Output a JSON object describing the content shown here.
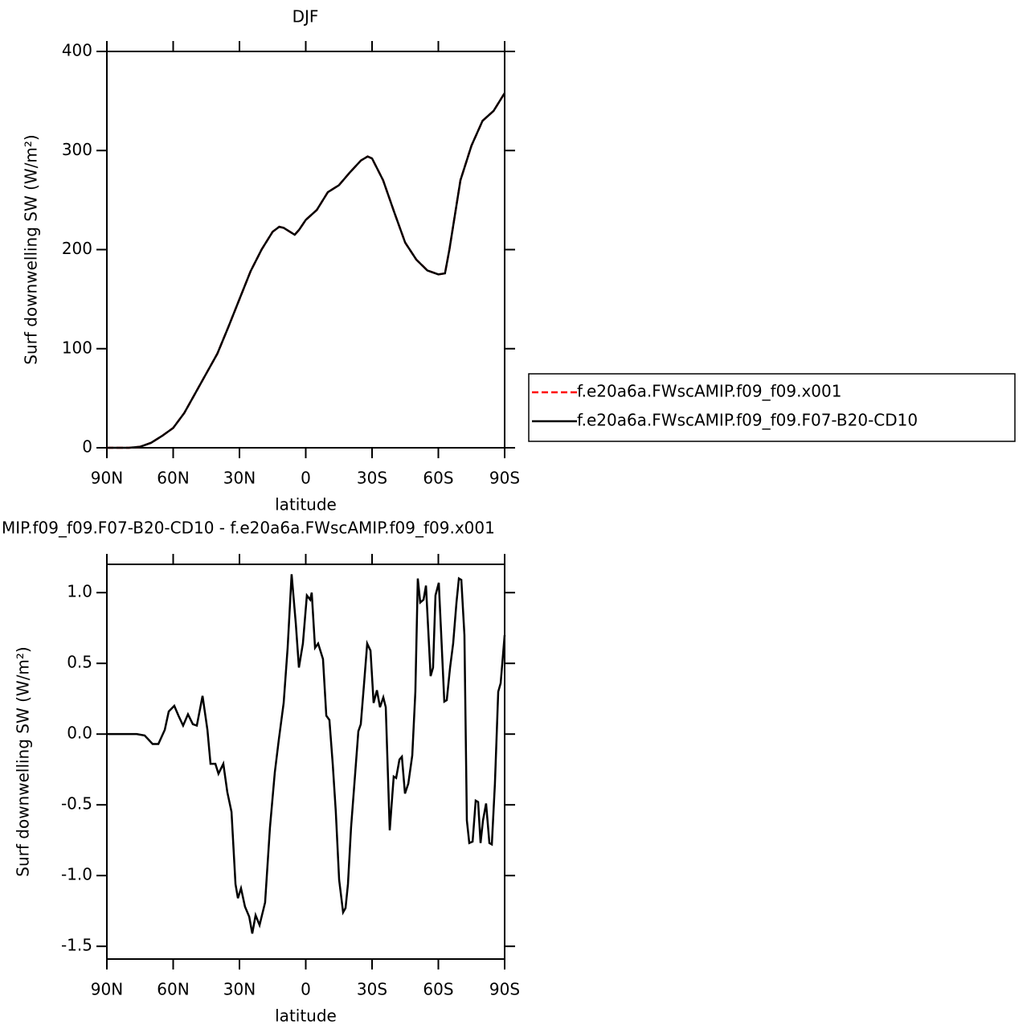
{
  "chart_data": [
    {
      "type": "line",
      "title": "DJF",
      "xlabel": "latitude",
      "ylabel": "Surf downwelling SW (W/m²)",
      "x": [
        90,
        80,
        75,
        70,
        65,
        60,
        55,
        50,
        45,
        40,
        35,
        30,
        25,
        20,
        15,
        12,
        10,
        5,
        3,
        0,
        -5,
        -10,
        -15,
        -20,
        -25,
        -28,
        -30,
        -35,
        -40,
        -45,
        -50,
        -55,
        -60,
        -63,
        -65,
        -70,
        -75,
        -80,
        -85,
        -90
      ],
      "series": [
        {
          "name": "f.e20a6a.FWscAMIP.f09_f09.x001",
          "color": "#ff0000",
          "dashed": true,
          "values": [
            0,
            0,
            1,
            5,
            12,
            20,
            35,
            55,
            75,
            95,
            122,
            150,
            178,
            200,
            218,
            223,
            222,
            215,
            220,
            230,
            240,
            258,
            265,
            278,
            290,
            294,
            292,
            270,
            238,
            207,
            190,
            179,
            175,
            176,
            200,
            270,
            305,
            330,
            340,
            358
          ]
        },
        {
          "name": "f.e20a6a.FWscAMIP.f09_f09.F07-B20-CD10",
          "color": "#000000",
          "dashed": false,
          "values": [
            0,
            0,
            1,
            5,
            12,
            20,
            35,
            55,
            75,
            95,
            122,
            150,
            178,
            200,
            218,
            223,
            222,
            215,
            220,
            230,
            240,
            258,
            265,
            278,
            290,
            294,
            292,
            270,
            238,
            207,
            190,
            179,
            175,
            176,
            200,
            270,
            305,
            330,
            340,
            358
          ]
        }
      ],
      "xlim": [
        90,
        -90
      ],
      "xticks": [
        {
          "value": 90,
          "label": "90N"
        },
        {
          "value": 60,
          "label": "60N"
        },
        {
          "value": 30,
          "label": "30N"
        },
        0,
        {
          "value": -30,
          "label": "30S"
        },
        {
          "value": -60,
          "label": "60S"
        },
        {
          "value": -90,
          "label": "90S"
        }
      ],
      "ylim": [
        0,
        400
      ],
      "yticks": [
        0,
        100,
        200,
        300,
        400
      ],
      "legend": "right"
    },
    {
      "type": "line",
      "title": "MIP.f09_f09.F07-B20-CD10 - f.e20a6a.FWscAMIP.f09_f09.x001",
      "xlabel": "latitude",
      "ylabel": "Surf downwelling SW (W/m²)",
      "x": [
        90,
        76.5,
        72.9,
        69.3,
        66.7,
        63.8,
        62,
        59.5,
        57.6,
        55.5,
        53.3,
        51.1,
        49.3,
        46.7,
        44.5,
        43.1,
        40.9,
        39.5,
        37.3,
        35.5,
        33.6,
        31.8,
        30.7,
        29.3,
        27.5,
        25.6,
        24.2,
        22.7,
        20.9,
        18.4,
        16.2,
        14,
        12.2,
        10,
        8.2,
        6.4,
        4.5,
        3.1,
        1.3,
        -0.5,
        -2,
        -2.7,
        -4.2,
        -5.6,
        -7.8,
        -9.3,
        -10.7,
        -12.2,
        -13.6,
        -15.1,
        -16.9,
        -18,
        -19.1,
        -20.5,
        -22.4,
        -23.8,
        -24.9,
        -26.4,
        -27.8,
        -29.3,
        -30.7,
        -32.2,
        -33.6,
        -35.1,
        -36.2,
        -38,
        -39.8,
        -40.9,
        -42.4,
        -43.5,
        -44.9,
        -46.4,
        -48.2,
        -49.6,
        -50.7,
        -51.8,
        -53.3,
        -54.4,
        -56.5,
        -57.6,
        -58.7,
        -60.2,
        -61.3,
        -62.7,
        -63.8,
        -65.3,
        -66.7,
        -68.2,
        -69.3,
        -70.4,
        -71.8,
        -72.9,
        -74,
        -75.5,
        -76.9,
        -78,
        -79.1,
        -80.2,
        -81.6,
        -83.1,
        -84.2,
        -85.6,
        -87.1,
        -88.2,
        -90
      ],
      "series": [
        {
          "color": "#000000",
          "dashed": false,
          "values": [
            0,
            0,
            -0.01,
            -0.07,
            -0.07,
            0.03,
            0.16,
            0.2,
            0.13,
            0.06,
            0.14,
            0.07,
            0.06,
            0.27,
            0.03,
            -0.21,
            -0.21,
            -0.28,
            -0.21,
            -0.41,
            -0.55,
            -1.06,
            -1.16,
            -1.09,
            -1.22,
            -1.29,
            -1.41,
            -1.28,
            -1.35,
            -1.19,
            -0.66,
            -0.27,
            -0.04,
            0.22,
            0.61,
            1.13,
            0.78,
            0.47,
            0.64,
            0.98,
            0.95,
            1.0,
            0.61,
            0.64,
            0.53,
            0.13,
            0.1,
            -0.21,
            -0.55,
            -1.03,
            -1.26,
            -1.23,
            -1.06,
            -0.66,
            -0.27,
            0.02,
            0.07,
            0.36,
            0.64,
            0.59,
            0.22,
            0.31,
            0.19,
            0.26,
            0.19,
            -0.68,
            -0.3,
            -0.31,
            -0.18,
            -0.16,
            -0.42,
            -0.35,
            -0.15,
            0.3,
            1.1,
            0.93,
            0.95,
            1.05,
            0.41,
            0.47,
            0.98,
            1.07,
            0.7,
            0.23,
            0.24,
            0.47,
            0.64,
            0.93,
            1.1,
            1.09,
            0.7,
            -0.61,
            -0.77,
            -0.76,
            -0.47,
            -0.48,
            -0.77,
            -0.61,
            -0.49,
            -0.77,
            -0.78,
            -0.35,
            0.3,
            0.36,
            0.7
          ]
        }
      ],
      "xlim": [
        90,
        -90
      ],
      "xticks": [
        {
          "value": 90,
          "label": "90N"
        },
        {
          "value": 60,
          "label": "60N"
        },
        {
          "value": 30,
          "label": "30N"
        },
        0,
        {
          "value": -30,
          "label": "30S"
        },
        {
          "value": -60,
          "label": "60S"
        },
        {
          "value": -90,
          "label": "90S"
        }
      ],
      "ylim": [
        -1.59,
        1.2
      ],
      "yticks": [
        {
          "value": -1.5,
          "label": "-1.5"
        },
        {
          "value": -1,
          "label": "-1.0"
        },
        -0.5,
        {
          "value": 0,
          "label": "0.0"
        },
        0.5,
        {
          "value": 1,
          "label": "1.0"
        }
      ]
    }
  ]
}
